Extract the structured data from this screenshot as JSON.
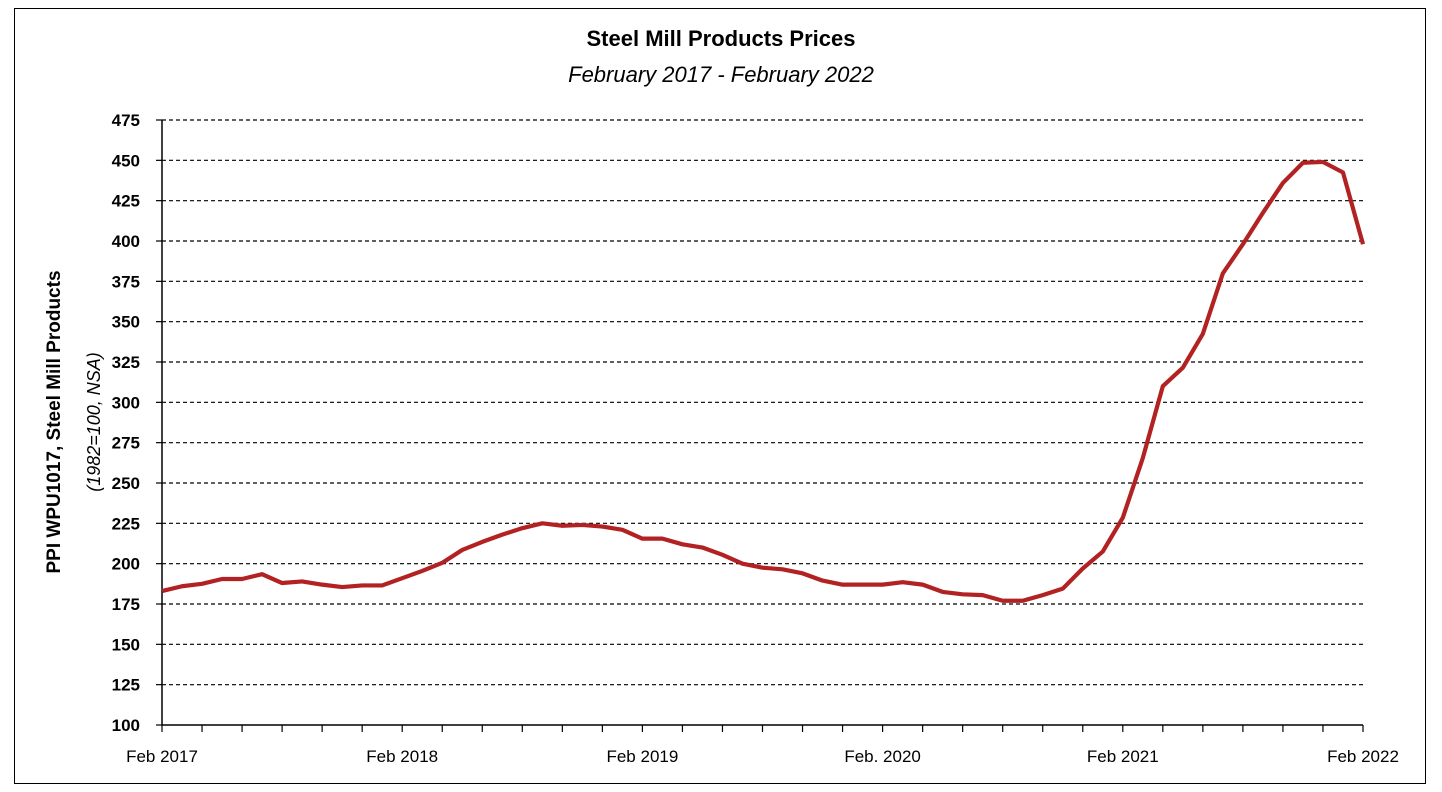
{
  "chart_data": {
    "type": "line",
    "title": "Steel Mill Products Prices",
    "subtitle": "February 2017 - February 2022",
    "ylabel": "PPI WPU1017, Steel Mill Products",
    "ylabel_sub": "(1982=100, NSA)",
    "ylim": [
      100,
      475
    ],
    "yticks": [
      100,
      125,
      150,
      175,
      200,
      225,
      250,
      275,
      300,
      325,
      350,
      375,
      400,
      425,
      450,
      475
    ],
    "xticks": [
      "Feb 2017",
      "Feb 2018",
      "Feb 2019",
      "Feb. 2020",
      "Feb 2021",
      "Feb 2022"
    ],
    "grid": true,
    "line_color": "#B22222",
    "series": [
      {
        "values": [
          183,
          186,
          187.5,
          190.5,
          190.5,
          193.5,
          188,
          189,
          187,
          185.5,
          186.5,
          186.5,
          191,
          195.5,
          200.5,
          208.5,
          213.5,
          218,
          222,
          225,
          223.5,
          224,
          223,
          221,
          215.5,
          215.5,
          212,
          210,
          205.5,
          200,
          197.5,
          196.5,
          194,
          189.5,
          187,
          187,
          187,
          188.5,
          187,
          182.5,
          181,
          180.5,
          177,
          177,
          180.5,
          184.5,
          197,
          207.5,
          228.5,
          265.5,
          310,
          321.5,
          342.5,
          380,
          398,
          417.5,
          436,
          448.5,
          449,
          442.5,
          398
        ]
      }
    ]
  }
}
